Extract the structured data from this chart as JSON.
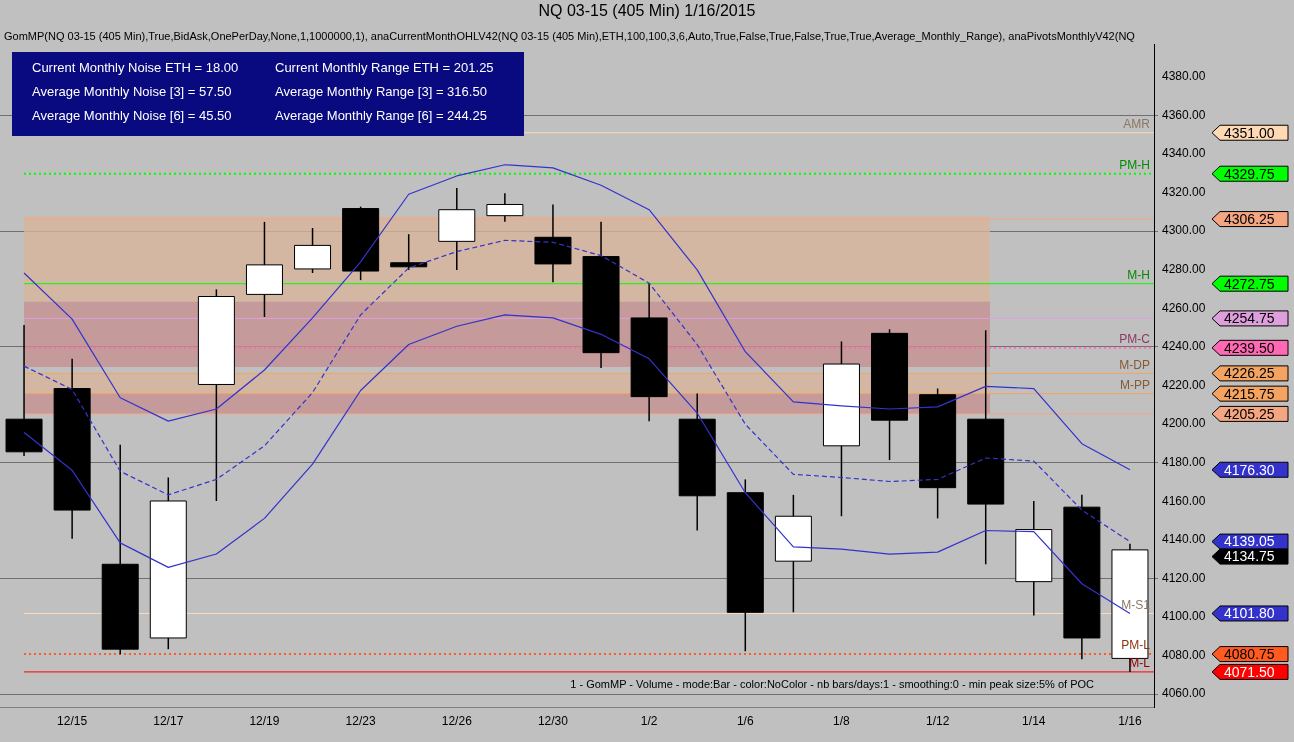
{
  "chart_data": {
    "type": "candlestick",
    "title": "NQ 03-15 (405 Min)  1/16/2015",
    "subtitle": "GomMP(NQ 03-15 (405 Min),True,BidAsk,OnePerDay,None,1,1000000,1), anaCurrentMonthOHLV42(NQ 03-15 (405 Min),ETH,100,100,3,6,Auto,True,False,True,False,True,True,Average_Monthly_Range), anaPivotsMonthlyV42(NQ",
    "categories": [
      null,
      "12/15",
      null,
      "12/17",
      null,
      "12/19",
      null,
      "12/23",
      null,
      "12/26",
      null,
      "12/30",
      null,
      "1/2",
      null,
      "1/6",
      null,
      "1/8",
      null,
      "1/12",
      null,
      "1/14",
      null,
      "1/16"
    ],
    "ohlc": [
      [
        4202.5,
        4251.3,
        4183.4,
        4185.6
      ],
      [
        4218.4,
        4233.8,
        4140.5,
        4155.4
      ],
      [
        4127.3,
        4189.3,
        4080.7,
        4083.3
      ],
      [
        4089.1,
        4172.3,
        4083.3,
        4160.1
      ],
      [
        4220.5,
        4269.8,
        4160.1,
        4266.1
      ],
      [
        4267.2,
        4304.8,
        4255.5,
        4282.5
      ],
      [
        4280.4,
        4301.6,
        4278.3,
        4292.6
      ],
      [
        4311.7,
        4312.7,
        4274.6,
        4279.3
      ],
      [
        4283.6,
        4298.4,
        4279.9,
        4281.5
      ],
      [
        4294.7,
        4322.3,
        4279.9,
        4311.1
      ],
      [
        4308,
        4319.6,
        4304.8,
        4313.8
      ],
      [
        4296.8,
        4313.8,
        4273.5,
        4283
      ],
      [
        4286.8,
        4304.8,
        4229,
        4237
      ],
      [
        4255,
        4273,
        4201.5,
        4214.2
      ],
      [
        4202.5,
        4215.8,
        4144.8,
        4162.8
      ],
      [
        4164.4,
        4171.3,
        4082.2,
        4102.4
      ],
      [
        4128.9,
        4163.3,
        4102.4,
        4152.2
      ],
      [
        4188.7,
        4242.8,
        4152.2,
        4231.1
      ],
      [
        4247,
        4249.1,
        4181.3,
        4202
      ],
      [
        4215.2,
        4218.4,
        4151.1,
        4167
      ],
      [
        4202.5,
        4248.6,
        4127.3,
        4158.5
      ],
      [
        4118.3,
        4160.1,
        4100.8,
        4145.3
      ],
      [
        4156.9,
        4163.3,
        4078,
        4089.1
      ],
      [
        4078.5,
        4137.9,
        4071.5,
        4134.75
      ]
    ],
    "series": [
      {
        "type": "line",
        "color": "#3333cc",
        "line_style": "solid",
        "values": [
          4278.3,
          4254.4,
          4213.6,
          4201.5,
          4207.8,
          4228,
          4255,
          4284.1,
          4319.1,
          4328.6,
          4334.4,
          4332.8,
          4323.8,
          4311.1,
          4279.9,
          4237.5,
          4211.5,
          4209.4,
          4207.8,
          4208.9,
          4219.5,
          4218.4,
          4189.8,
          4176.3
        ]
      },
      {
        "type": "line",
        "color": "#3333cc",
        "line_style": "dashed",
        "values": [
          4230,
          4217.9,
          4175.5,
          4163.3,
          4171.3,
          4188.7,
          4216.3,
          4256.6,
          4280.9,
          4289.4,
          4295.2,
          4294.2,
          4287.3,
          4273,
          4241.2,
          4199.9,
          4173.9,
          4172.3,
          4170.2,
          4171.3,
          4182.4,
          4180.8,
          4155.4,
          4139.05
        ]
      },
      {
        "type": "line",
        "color": "#3333cc",
        "line_style": "solid",
        "values": [
          4195.6,
          4176,
          4138.4,
          4125.7,
          4132.6,
          4151.1,
          4179.2,
          4217.4,
          4241.2,
          4250.7,
          4256.6,
          4255,
          4246.5,
          4233.8,
          4205.7,
          4164.4,
          4136.3,
          4135.2,
          4132.6,
          4133.6,
          4144.8,
          4144.2,
          4117.2,
          4101.8
        ]
      }
    ],
    "bands": [
      {
        "axis": "y",
        "from": 4263.4,
        "to": 4307.4,
        "color": "#d8b49a"
      },
      {
        "axis": "y",
        "from": 4229.5,
        "to": 4263.4,
        "color": "#c49090"
      },
      {
        "axis": "y",
        "from": 4215.75,
        "to": 4226.25,
        "color": "#d8b49a"
      },
      {
        "axis": "y",
        "from": 4205.25,
        "to": 4215.75,
        "color": "#c49090"
      }
    ],
    "ref_lines": [
      {
        "axis": "y",
        "value": 4351,
        "label": "AMR",
        "color": "#ffd9b3",
        "line_style": "solid"
      },
      {
        "axis": "y",
        "value": 4329.75,
        "label": "PM-H",
        "color": "#00ff00",
        "line_style": "dotted"
      },
      {
        "axis": "y",
        "value": 4306.25,
        "label": null,
        "color": "#f4a582",
        "line_style": "solid"
      },
      {
        "axis": "y",
        "value": 4272.75,
        "label": "M-H",
        "color": "#00ff00",
        "line_style": "solid"
      },
      {
        "axis": "y",
        "value": 4254.75,
        "label": null,
        "color": "#dda0dd",
        "line_style": "solid"
      },
      {
        "axis": "y",
        "value": 4239.5,
        "label": "PM-C",
        "color": "#ff69b4",
        "line_style": "dotted"
      },
      {
        "axis": "y",
        "value": 4226.25,
        "label": "M-DP",
        "color": "#f4a460",
        "line_style": "solid"
      },
      {
        "axis": "y",
        "value": 4215.75,
        "label": "M-PP",
        "color": "#f4a460",
        "line_style": "solid"
      },
      {
        "axis": "y",
        "value": 4205.25,
        "label": null,
        "color": "#f4a582",
        "line_style": "solid"
      },
      {
        "axis": "y",
        "value": 4101.8,
        "label": "M-S1",
        "color": "#ffdab9",
        "line_style": "solid"
      },
      {
        "axis": "y",
        "value": 4080.75,
        "label": "PM-L",
        "color": "#ff5a1f",
        "line_style": "dotted"
      },
      {
        "axis": "y",
        "value": 4071.5,
        "label": "M-L",
        "color": "#ff0000",
        "line_style": "solid"
      }
    ],
    "ylim": [
      4053,
      4397
    ],
    "yticks": [
      {
        "value": 4060,
        "label": "4060.00"
      },
      {
        "value": 4080,
        "label": "4080.00"
      },
      {
        "value": 4100,
        "label": "4100.00"
      },
      {
        "value": 4120,
        "label": "4120.00"
      },
      {
        "value": 4140,
        "label": "4140.00"
      },
      {
        "value": 4160,
        "label": "4160.00"
      },
      {
        "value": 4180,
        "label": "4180.00"
      },
      {
        "value": 4200,
        "label": "4200.00"
      },
      {
        "value": 4220,
        "label": "4220.00"
      },
      {
        "value": 4240,
        "label": "4240.00"
      },
      {
        "value": 4260,
        "label": "4260.00"
      },
      {
        "value": 4280,
        "label": "4280.00"
      },
      {
        "value": 4300,
        "label": "4300.00"
      },
      {
        "value": 4320,
        "label": "4320.00"
      },
      {
        "value": 4340,
        "label": "4340.00"
      },
      {
        "value": 4360,
        "label": "4360.00"
      },
      {
        "value": 4380,
        "label": "4380.00"
      }
    ],
    "grid": "y",
    "legend": false,
    "marker": "none",
    "annotations": [
      "Current Monthly Noise ETH = 18.00",
      "Average Monthly Noise [3] = 57.50",
      "Average Monthly Noise [6] = 45.50",
      "Current Monthly Range ETH = 201.25",
      "Average Monthly Range [3] = 316.50",
      "Average Monthly Range [6] = 244.25",
      "1 - GomMP - Volume - mode:Bar - color:NoColor - nb bars/days:1 - smoothing:0 - min peak size:5% of POC",
      "4351.00",
      "4329.75",
      "4306.25",
      "4272.75",
      "4254.75",
      "4239.50",
      "4226.25",
      "4215.75",
      "4205.25",
      "4176.30",
      "4139.05",
      "4134.75",
      "4101.80",
      "4080.75",
      "4071.50"
    ]
  }
}
